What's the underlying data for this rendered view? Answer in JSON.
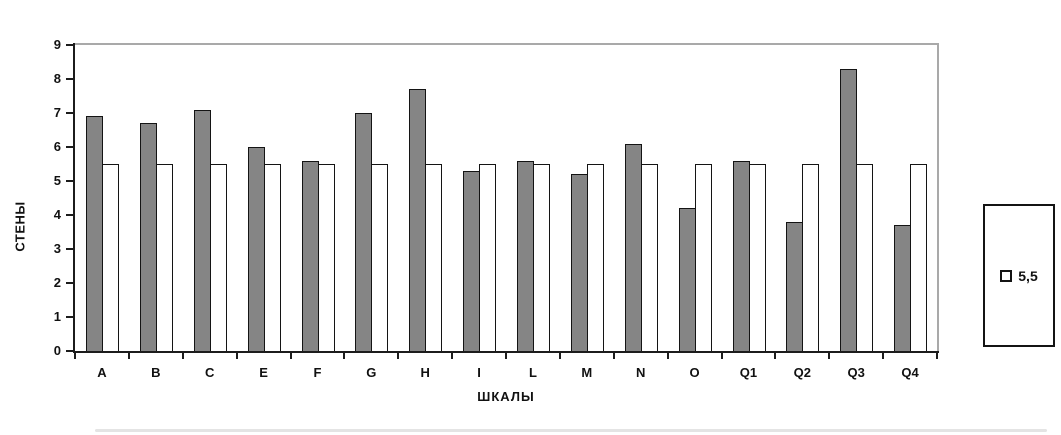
{
  "chart_data": {
    "type": "bar",
    "title": "",
    "categories": [
      "A",
      "B",
      "C",
      "E",
      "F",
      "G",
      "H",
      "I",
      "L",
      "M",
      "N",
      "O",
      "Q1",
      "Q2",
      "Q3",
      "Q4"
    ],
    "series": [
      {
        "name": "",
        "color": "#858585",
        "values": [
          6.9,
          6.7,
          7.1,
          6.0,
          5.6,
          7.0,
          7.7,
          5.3,
          5.6,
          5.2,
          6.1,
          4.2,
          5.6,
          3.8,
          8.3,
          3.7
        ]
      },
      {
        "name": "5,5",
        "color": "#ffffff",
        "values": [
          5.5,
          5.5,
          5.5,
          5.5,
          5.5,
          5.5,
          5.5,
          5.5,
          5.5,
          5.5,
          5.5,
          5.5,
          5.5,
          5.5,
          5.5,
          5.5
        ]
      }
    ],
    "xlabel": "ШКАЛЫ",
    "ylabel": "СТЕНЫ",
    "ylim": [
      0,
      9
    ],
    "y_ticks": [
      0,
      1,
      2,
      3,
      4,
      5,
      6,
      7,
      8,
      9
    ],
    "grid": "off",
    "legend": {
      "position": "right",
      "entries": [
        {
          "label": "5,5",
          "marker": "white-square"
        }
      ]
    }
  },
  "colors": {
    "bar_gray": "#858585",
    "bar_white": "#ffffff",
    "axis": "#1c1c1c",
    "frame_gray": "#a9a9a9",
    "bottom_rule": "#e4e4e4"
  }
}
